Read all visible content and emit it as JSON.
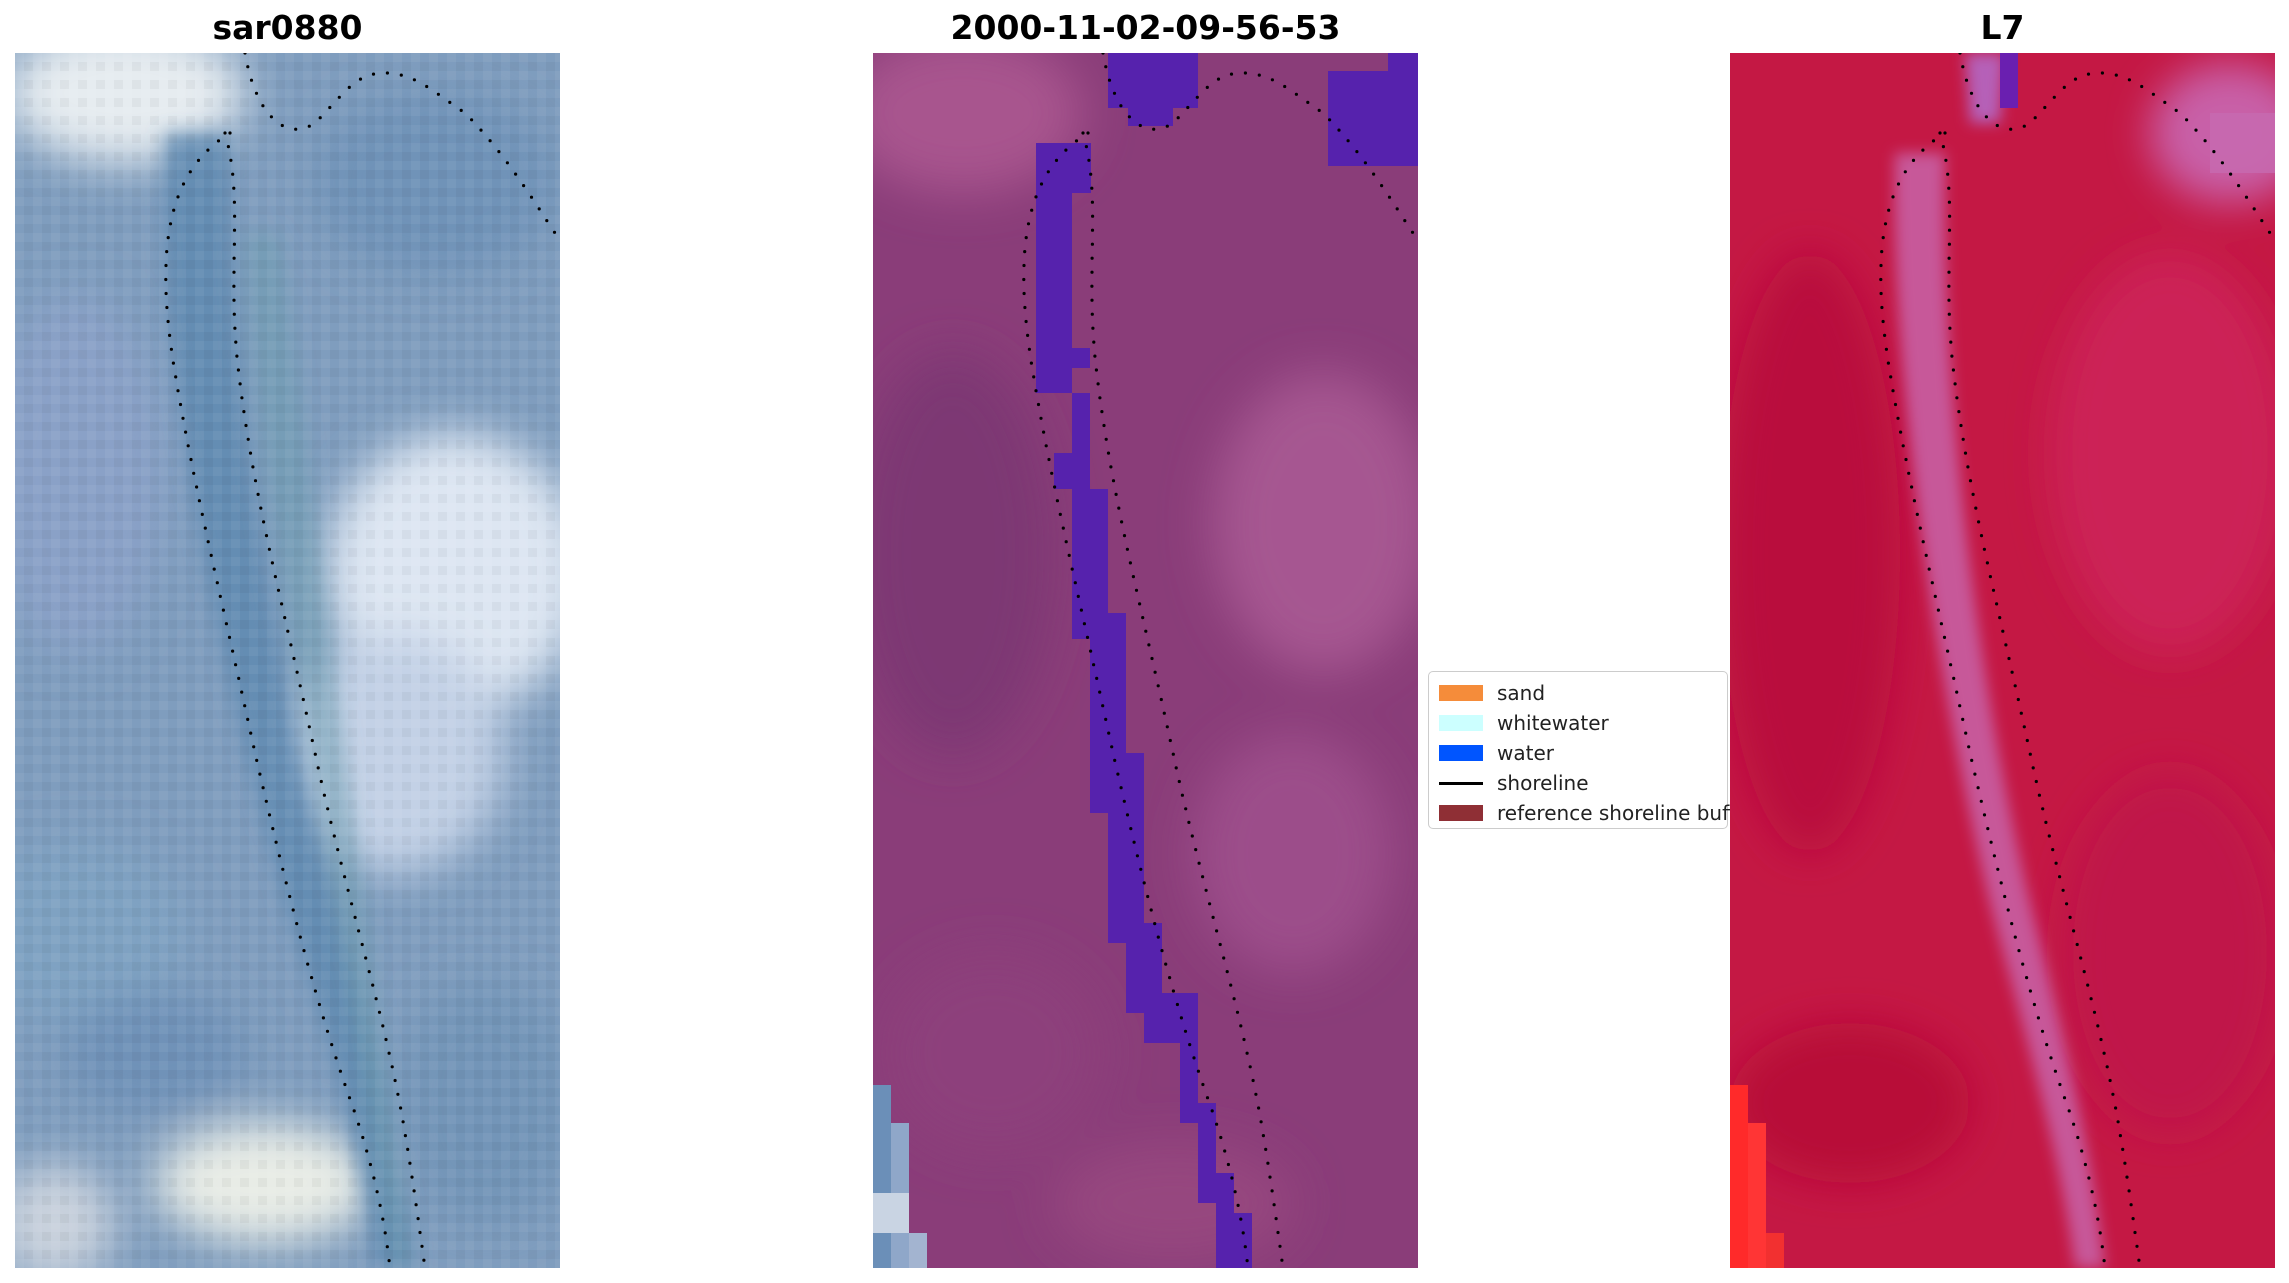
{
  "panels": [
    {
      "title": "sar0880"
    },
    {
      "title": "2000-11-02-09-56-53"
    },
    {
      "title": "L7"
    }
  ],
  "legend": {
    "items": [
      {
        "label": "sand",
        "color": "#f58c3a",
        "kind": "patch"
      },
      {
        "label": "whitewater",
        "color": "#ccffff",
        "kind": "patch"
      },
      {
        "label": "water",
        "color": "#0055ff",
        "kind": "patch"
      },
      {
        "label": "shoreline",
        "color": "#000000",
        "kind": "line"
      },
      {
        "label": "reference shoreline buffer",
        "color": "#8f2f35",
        "kind": "patch"
      }
    ]
  },
  "colors": {
    "rgb_base": "#7f9dbe",
    "classified_base": "#8a3d79",
    "classified_water": "#5622ad",
    "nir_base": "#c41844",
    "nir_channel": "#c863a8"
  }
}
